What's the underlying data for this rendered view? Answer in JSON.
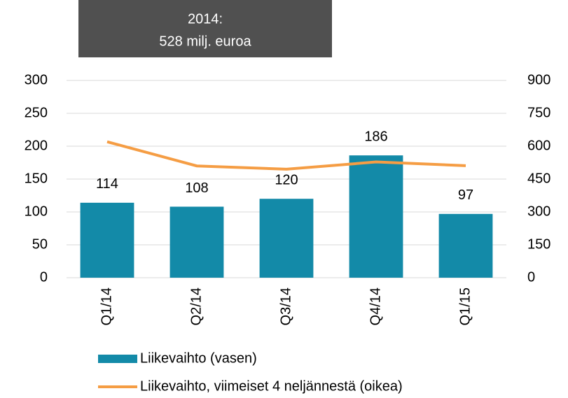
{
  "chart_data": {
    "type": "bar",
    "annotation": [
      "2014:",
      "528 milj. euroa"
    ],
    "categories": [
      "Q1/14",
      "Q2/14",
      "Q3/14",
      "Q4/14",
      "Q1/15"
    ],
    "series": [
      {
        "name": "Liikevaihto (vasen)",
        "color": "#138aa8",
        "values": [
          114,
          108,
          120,
          186,
          97
        ]
      },
      {
        "name": "Liikevaihto, viimeiset 4 neljännestä (oikea)",
        "color": "#f59d44",
        "axis": "y2",
        "values": [
          620,
          510,
          495,
          528,
          511
        ]
      }
    ],
    "ylim": [
      0,
      300
    ],
    "yticks": [
      0,
      50,
      100,
      150,
      200,
      250,
      300
    ],
    "y2lim": [
      0,
      900
    ],
    "y2ticks": [
      0,
      150,
      300,
      450,
      600,
      750,
      900
    ],
    "grid": true
  }
}
